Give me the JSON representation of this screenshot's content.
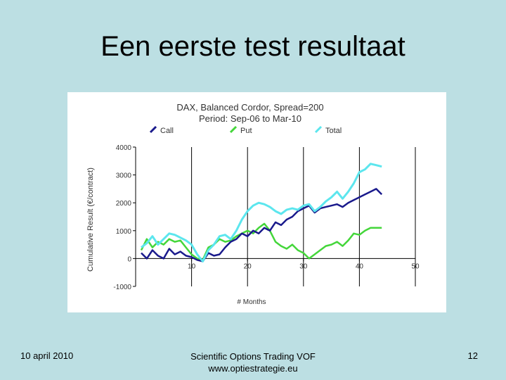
{
  "slide": {
    "title": "Een eerste test resultaat",
    "footer": {
      "date": "10 april 2010",
      "company": "Scientific Options Trading VOF",
      "website": "www.optiestrategie.eu",
      "page_number": "12"
    }
  },
  "chart_data": {
    "type": "line",
    "title": "DAX, Balanced Cordor, Spread=200",
    "subtitle": "Period: Sep-06 to Mar-10",
    "xlabel": "# Months",
    "ylabel": "Cumulative Result (€/contract)",
    "xlim": [
      0,
      50
    ],
    "ylim": [
      -1000,
      4000
    ],
    "x_ticks": [
      10,
      20,
      30,
      40,
      50
    ],
    "y_ticks": [
      4000,
      3000,
      2000,
      1000,
      0,
      -1000
    ],
    "grid": "vertical",
    "legend_position": "top",
    "x": [
      1,
      2,
      3,
      4,
      5,
      6,
      7,
      8,
      9,
      10,
      11,
      12,
      13,
      14,
      15,
      16,
      17,
      18,
      19,
      20,
      21,
      22,
      23,
      24,
      25,
      26,
      27,
      28,
      29,
      30,
      31,
      32,
      33,
      34,
      35,
      36,
      37,
      38,
      39,
      40,
      41,
      42,
      43,
      44
    ],
    "series": [
      {
        "name": "Call",
        "color": "#1a1a8c",
        "values": [
          200,
          0,
          300,
          100,
          0,
          350,
          150,
          250,
          100,
          50,
          -50,
          -100,
          200,
          100,
          150,
          400,
          600,
          700,
          900,
          800,
          1000,
          900,
          1100,
          1000,
          1300,
          1200,
          1400,
          1500,
          1700,
          1800,
          1900,
          1650,
          1800,
          1850,
          1900,
          1950,
          1850,
          2000,
          2100,
          2200,
          2300,
          2400,
          2500,
          2300
        ]
      },
      {
        "name": "Put",
        "color": "#44d63a",
        "values": [
          300,
          700,
          400,
          600,
          500,
          700,
          600,
          650,
          400,
          150,
          0,
          -50,
          400,
          500,
          700,
          600,
          650,
          800,
          900,
          1000,
          900,
          1100,
          1250,
          1000,
          600,
          450,
          350,
          500,
          300,
          200,
          0,
          150,
          300,
          450,
          500,
          600,
          450,
          650,
          900,
          850,
          1000,
          1100,
          1100,
          1100
        ]
      },
      {
        "name": "Total",
        "color": "#5ce6ee",
        "values": [
          400,
          550,
          800,
          500,
          700,
          900,
          850,
          750,
          650,
          500,
          150,
          -100,
          300,
          500,
          800,
          850,
          700,
          1000,
          1400,
          1700,
          1900,
          2000,
          1950,
          1850,
          1700,
          1600,
          1750,
          1800,
          1750,
          1900,
          1950,
          1700,
          1850,
          2050,
          2200,
          2400,
          2150,
          2400,
          2700,
          3100,
          3200,
          3400,
          3350,
          3300
        ]
      }
    ]
  }
}
